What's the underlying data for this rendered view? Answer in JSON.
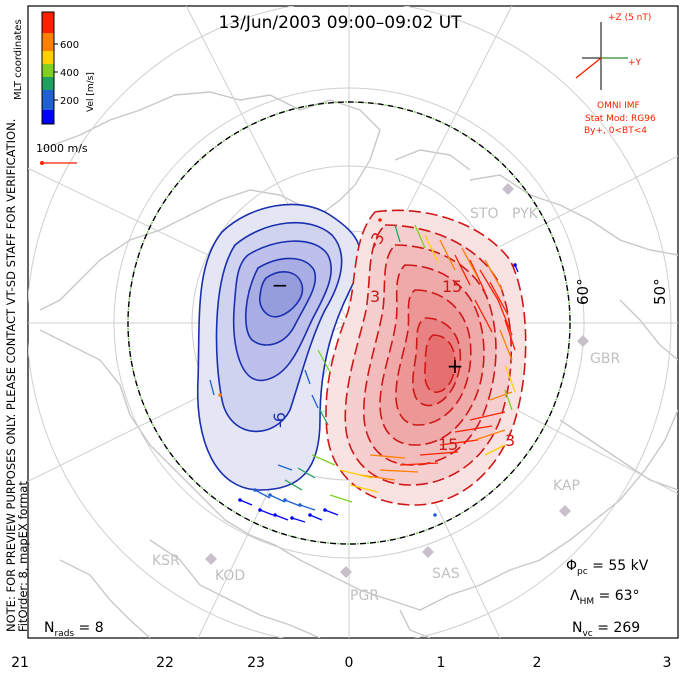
{
  "title": "13/Jun/2003 09:00–09:02 UT",
  "colorbar": {
    "label": "Vel [m/s]",
    "ticks": [
      "600",
      "400",
      "200"
    ],
    "colors": [
      "#0000ff",
      "#2060d0",
      "#20a060",
      "#80d020",
      "#ffd000",
      "#ff8000",
      "#ff2000"
    ]
  },
  "mlt_label": "MLT coordinates",
  "scale_vector": "1000 m/s",
  "imf": {
    "z_label": "+Z (5 nT)",
    "y_label": "+Y",
    "source": "OMNI IMF",
    "stat_mod": "Stat Mod: RG96",
    "condition": "By+, 0<BT<4"
  },
  "note_text": "NOTE: FOR PREVIEW PURPOSES ONLY. PLEASE CONTACT VT-SD STAFF FOR VERIFICATION.",
  "fit_text": "FitOrder: 8, mapEX format",
  "stations": [
    "STO",
    "PYK",
    "GBR",
    "KAP",
    "SAS",
    "PGR",
    "KOD",
    "KSR"
  ],
  "lat_labels": [
    "60°",
    "50°"
  ],
  "contour_labels": [
    "-3",
    "3",
    "-6",
    "15",
    "15",
    "3"
  ],
  "centers": {
    "min": "−",
    "max": "+"
  },
  "stats": {
    "phi_pc": "55 kV",
    "lambda_hm": "63°",
    "n_vc": "269",
    "n_rads": "8"
  },
  "bottom_axis": [
    "21",
    "22",
    "23",
    "0",
    "1",
    "2",
    "3"
  ]
}
